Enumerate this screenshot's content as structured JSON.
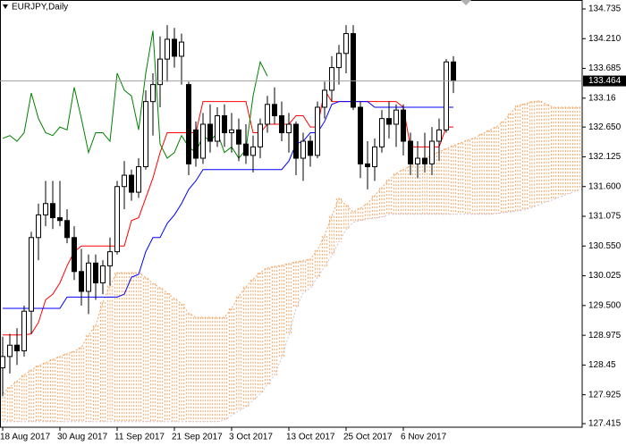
{
  "chart_data": {
    "type": "candlestick",
    "title": "EURJPY,Daily",
    "categories": [
      "18 Aug 2017",
      null,
      null,
      null,
      null,
      null,
      null,
      null,
      "30 Aug 2017",
      null,
      null,
      null,
      null,
      null,
      null,
      null,
      "11 Sep 2017",
      null,
      null,
      null,
      null,
      null,
      null,
      null,
      "21 Sep 2017",
      null,
      null,
      null,
      null,
      null,
      null,
      null,
      "3 Oct 2017",
      null,
      null,
      null,
      null,
      null,
      null,
      null,
      "13 Oct 2017",
      null,
      null,
      null,
      null,
      null,
      null,
      null,
      "25 Oct 2017",
      null,
      null,
      null,
      null,
      null,
      null,
      null,
      "6 Nov 2017",
      null,
      null,
      null,
      null,
      null,
      null,
      null,
      null,
      null,
      null,
      null,
      null,
      null,
      null,
      null,
      null,
      null,
      null,
      null,
      null,
      null,
      null,
      null,
      null,
      null
    ],
    "open": [
      128.4,
      128.6,
      128.8,
      128.7,
      129.4,
      130.7,
      131.1,
      131.3,
      131.05,
      131.0,
      130.7,
      130.1,
      129.75,
      130.25,
      129.9,
      130.2,
      130.45,
      131.6,
      131.8,
      131.5,
      131.95,
      133.1,
      133.4,
      133.85,
      134.2,
      133.9,
      133.4,
      132.6,
      132.1,
      132.7,
      132.4,
      132.85,
      132.55,
      132.6,
      132.35,
      132.15,
      132.3,
      132.7,
      133.05,
      132.85,
      132.55,
      132.7,
      132.1,
      132.4,
      132.15,
      133.0,
      133.3,
      133.7,
      133.95,
      134.3,
      133.0,
      132.0,
      131.95,
      132.3,
      132.8,
      132.7,
      132.95,
      132.4,
      132.0,
      132.1,
      132.0,
      132.4,
      132.6,
      133.8,
      null,
      null,
      null,
      null,
      null,
      null,
      null,
      null,
      null,
      null,
      null,
      null,
      null,
      null,
      null,
      null,
      null,
      null
    ],
    "high": [
      128.95,
      129.0,
      129.1,
      129.5,
      130.8,
      131.3,
      131.7,
      131.7,
      131.7,
      131.2,
      130.9,
      130.5,
      130.4,
      130.4,
      130.3,
      130.7,
      131.7,
      132.05,
      131.9,
      132.1,
      133.3,
      133.6,
      134.25,
      134.45,
      134.4,
      134.3,
      133.45,
      132.75,
      132.9,
      133.05,
      133.0,
      133.05,
      132.9,
      132.8,
      132.7,
      132.5,
      132.8,
      133.2,
      133.35,
      133.1,
      132.9,
      132.75,
      132.55,
      132.5,
      133.1,
      133.45,
      133.9,
      134.1,
      134.45,
      134.45,
      133.1,
      132.4,
      132.45,
      132.95,
      133.1,
      133.05,
      133.05,
      132.55,
      132.4,
      132.55,
      132.65,
      132.8,
      133.85,
      133.9,
      null,
      null,
      null,
      null,
      null,
      null,
      null,
      null,
      null,
      null,
      null,
      null,
      null,
      null,
      null,
      null,
      null,
      null
    ],
    "low": [
      127.9,
      128.3,
      128.45,
      128.6,
      129.0,
      130.3,
      130.9,
      130.85,
      130.9,
      130.6,
      129.95,
      129.5,
      129.35,
      129.6,
      129.7,
      129.85,
      130.4,
      131.2,
      131.35,
      131.4,
      131.9,
      132.5,
      133.0,
      133.45,
      133.7,
      133.4,
      131.8,
      131.95,
      132.0,
      132.2,
      132.3,
      132.3,
      132.2,
      132.05,
      132.0,
      131.85,
      132.1,
      132.55,
      132.7,
      132.4,
      132.2,
      131.8,
      131.7,
      131.95,
      132.1,
      132.8,
      133.1,
      133.4,
      133.6,
      132.95,
      131.75,
      131.55,
      131.7,
      132.2,
      132.45,
      132.3,
      132.15,
      131.8,
      131.75,
      131.85,
      131.8,
      132.05,
      132.55,
      133.25,
      null,
      null,
      null,
      null,
      null,
      null,
      null,
      null,
      null,
      null,
      null,
      null,
      null,
      null,
      null,
      null,
      null,
      null
    ],
    "close": [
      128.6,
      128.8,
      128.7,
      129.4,
      130.7,
      131.1,
      131.3,
      131.05,
      131.0,
      130.7,
      130.1,
      129.75,
      130.25,
      129.9,
      130.2,
      130.45,
      131.6,
      131.8,
      131.5,
      131.95,
      133.1,
      133.4,
      133.85,
      134.2,
      133.9,
      134.15,
      132.0,
      132.1,
      132.7,
      132.4,
      132.85,
      132.55,
      132.6,
      132.35,
      132.15,
      132.3,
      132.7,
      133.05,
      132.85,
      132.55,
      132.7,
      132.1,
      132.4,
      132.15,
      133.0,
      133.3,
      133.7,
      133.95,
      134.3,
      133.0,
      132.0,
      131.95,
      132.3,
      132.8,
      132.7,
      132.95,
      132.4,
      132.0,
      132.1,
      132.0,
      132.4,
      132.6,
      133.8,
      133.464,
      null,
      null,
      null,
      null,
      null,
      null,
      null,
      null,
      null,
      null,
      null,
      null,
      null,
      null,
      null,
      null,
      null,
      null
    ],
    "bull_color": "#ffffff",
    "bear_color": "#000000",
    "lines": [
      {
        "color": "#ff0000",
        "values": [
          128.98,
          128.98,
          128.98,
          128.98,
          129.0,
          129.2,
          129.6,
          129.7,
          129.9,
          130.2,
          130.45,
          130.55,
          130.55,
          130.55,
          130.55,
          130.55,
          130.55,
          130.55,
          131.0,
          131.05,
          131.4,
          131.75,
          132.2,
          132.55,
          132.55,
          132.55,
          132.55,
          132.55,
          133.1,
          133.1,
          133.1,
          133.1,
          133.1,
          133.1,
          133.1,
          132.55,
          132.55,
          132.7,
          132.7,
          132.7,
          132.7,
          132.85,
          132.85,
          132.65,
          132.65,
          133.3,
          133.1,
          133.1,
          133.1,
          133.1,
          133.1,
          133.1,
          133.1,
          133.1,
          133.1,
          133.1,
          133.0,
          132.3,
          132.3,
          132.3,
          132.3,
          132.3,
          132.65,
          132.65,
          null,
          null,
          null,
          null,
          null,
          null,
          null,
          null,
          null,
          null,
          null,
          null,
          null,
          null,
          null,
          null,
          null,
          null
        ]
      },
      {
        "color": "#0000ff",
        "values": [
          129.45,
          129.45,
          129.45,
          129.45,
          129.45,
          129.45,
          129.45,
          129.45,
          129.45,
          129.65,
          129.65,
          129.65,
          129.65,
          129.65,
          129.65,
          129.65,
          129.65,
          129.7,
          130.0,
          130.05,
          130.45,
          130.7,
          130.7,
          130.95,
          131.1,
          131.3,
          131.55,
          131.7,
          131.9,
          131.9,
          131.9,
          131.9,
          131.9,
          131.9,
          131.9,
          131.9,
          131.9,
          131.9,
          131.9,
          131.9,
          132.05,
          132.35,
          132.4,
          132.55,
          132.55,
          132.75,
          133.05,
          133.1,
          133.1,
          133.1,
          133.1,
          133.1,
          133.0,
          133.0,
          133.0,
          133.0,
          133.0,
          133.0,
          133.0,
          133.0,
          133.0,
          133.0,
          133.0,
          133.0,
          null,
          null,
          null,
          null,
          null,
          null,
          null,
          null,
          null,
          null,
          null,
          null,
          null,
          null,
          null,
          null,
          null,
          null
        ]
      },
      {
        "color": "#008000",
        "values": [
          132.45,
          132.5,
          132.4,
          132.55,
          133.25,
          132.8,
          132.55,
          132.5,
          132.65,
          132.6,
          133.35,
          132.8,
          132.2,
          132.55,
          132.55,
          132.4,
          133.6,
          133.3,
          133.2,
          132.6,
          133.6,
          134.35,
          132.35,
          132.1,
          132.2,
          132.5,
          132.3,
          132.2,
          132.5,
          132.4,
          132.55,
          132.2,
          132.3,
          132.1,
          132.25,
          133.2,
          133.8,
          133.55,
          null,
          null,
          null,
          null,
          null,
          null,
          null,
          null,
          null,
          null,
          null,
          null,
          null,
          null,
          null,
          null,
          null,
          null,
          null,
          null,
          null,
          null,
          null,
          null,
          null,
          null,
          null,
          null,
          null,
          null,
          null,
          null,
          null,
          null,
          null,
          null,
          null,
          null,
          null,
          null,
          null,
          null,
          null,
          null
        ]
      }
    ],
    "cloud": {
      "color": "#f4a460",
      "upper": {
        "color": "#f4a460",
        "values": [
          127.95,
          128.06,
          128.16,
          128.27,
          128.36,
          128.44,
          128.49,
          128.55,
          128.6,
          128.65,
          128.69,
          128.76,
          128.98,
          129.15,
          129.56,
          129.85,
          130.08,
          130.08,
          130.08,
          130.08,
          129.99,
          129.89,
          129.81,
          129.72,
          129.62,
          129.53,
          129.36,
          129.29,
          129.29,
          129.29,
          129.29,
          129.29,
          129.45,
          129.66,
          129.83,
          129.96,
          130.08,
          130.16,
          130.19,
          130.21,
          130.24,
          130.27,
          130.29,
          130.32,
          130.48,
          130.73,
          131.08,
          131.39,
          131.27,
          131.15,
          131.22,
          131.3,
          131.44,
          131.58,
          131.72,
          131.83,
          131.9,
          131.96,
          132.02,
          132.09,
          132.15,
          132.21,
          132.27,
          132.32,
          132.37,
          132.42,
          132.46,
          132.53,
          132.59,
          132.65,
          132.75,
          132.89,
          133.03,
          133.06,
          133.1,
          133.11,
          133.05,
          133.0,
          133.0,
          133.0,
          133.0,
          133.0
        ]
      },
      "lower": {
        "color": "#d8bfd8",
        "values": [
          127.45,
          127.45,
          127.45,
          127.45,
          127.45,
          127.45,
          127.45,
          127.45,
          127.45,
          127.45,
          127.45,
          127.45,
          127.45,
          127.45,
          127.45,
          127.45,
          127.45,
          127.45,
          127.45,
          127.45,
          127.45,
          127.45,
          127.45,
          127.45,
          127.45,
          127.45,
          127.45,
          127.45,
          127.45,
          127.45,
          127.45,
          127.48,
          127.56,
          127.64,
          127.71,
          127.83,
          127.94,
          128.11,
          128.27,
          128.58,
          128.98,
          129.45,
          129.72,
          129.81,
          130.0,
          130.19,
          130.38,
          130.62,
          130.84,
          130.97,
          131.0,
          131.03,
          131.04,
          131.06,
          131.11,
          131.11,
          131.11,
          131.11,
          131.11,
          131.11,
          131.11,
          131.11,
          131.11,
          131.11,
          131.11,
          131.11,
          131.11,
          131.11,
          131.11,
          131.12,
          131.14,
          131.15,
          131.17,
          131.19,
          131.23,
          131.28,
          131.33,
          131.37,
          131.42,
          131.47,
          131.52,
          131.55
        ]
      }
    },
    "last_price": 133.464,
    "ylim": [
      127.415,
      134.735
    ],
    "yticks": [
      134.735,
      {
        "value": 134.21,
        "label": "134.210"
      },
      133.685,
      133.16,
      {
        "value": 132.65,
        "label": "132.650"
      },
      132.125,
      {
        "value": 131.6,
        "label": "131.600"
      },
      131.075,
      {
        "value": 130.55,
        "label": "130.550"
      },
      130.025,
      {
        "value": 129.5,
        "label": "129.500"
      },
      128.975,
      128.45,
      127.925,
      127.415
    ],
    "grid": false
  }
}
